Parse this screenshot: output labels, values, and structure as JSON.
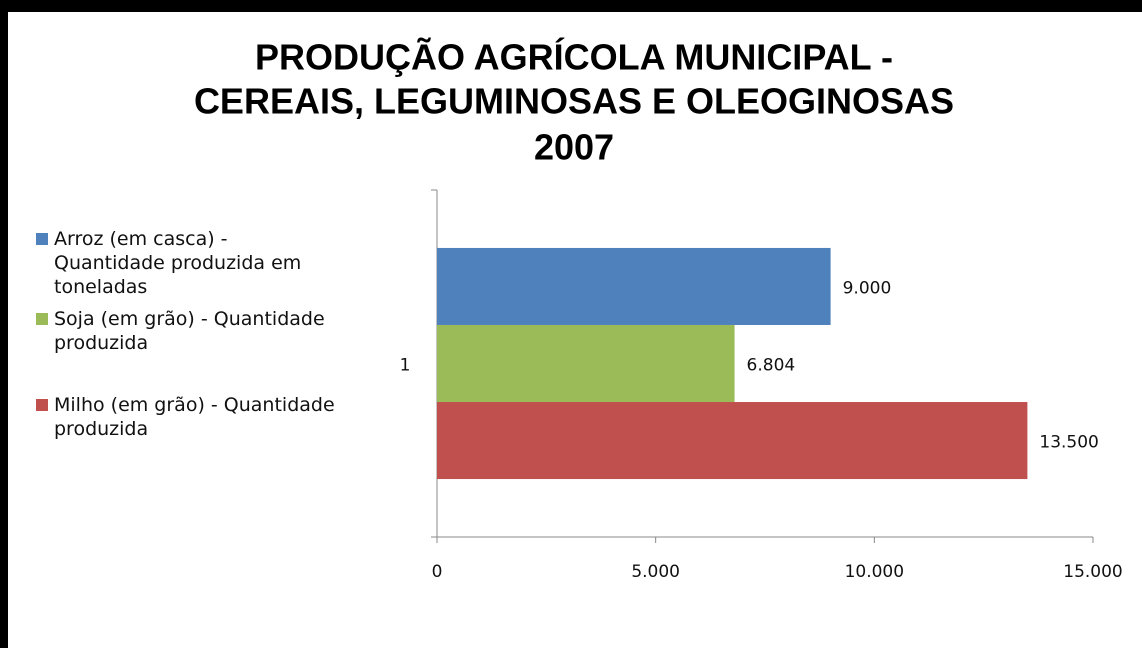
{
  "chart_data": {
    "type": "bar",
    "orientation": "horizontal",
    "title": [
      "PRODUÇÃO AGRÍCOLA MUNICIPAL -",
      "CEREAIS, LEGUMINOSAS E OLEOGINOSAS",
      "2007"
    ],
    "categories": [
      "1"
    ],
    "series": [
      {
        "name": "Arroz (em casca) - Quantidade produzida em toneladas",
        "color": "#4f81bd",
        "values": [
          9000
        ],
        "value_labels": [
          "9.000"
        ]
      },
      {
        "name": "Soja (em grão) - Quantidade produzida",
        "color": "#9bbb59",
        "values": [
          6804
        ],
        "value_labels": [
          "6.804"
        ]
      },
      {
        "name": "Milho (em grão) - Quantidade produzida",
        "color": "#c0504d",
        "values": [
          13500
        ],
        "value_labels": [
          "13.500"
        ]
      }
    ],
    "xlim": [
      0,
      15000
    ],
    "xticks": [
      0,
      {
        "value": 5000,
        "label": "5.000"
      },
      {
        "value": 10000,
        "label": "10.000"
      },
      {
        "value": 15000,
        "label": "15.000"
      }
    ],
    "legend": "left"
  }
}
